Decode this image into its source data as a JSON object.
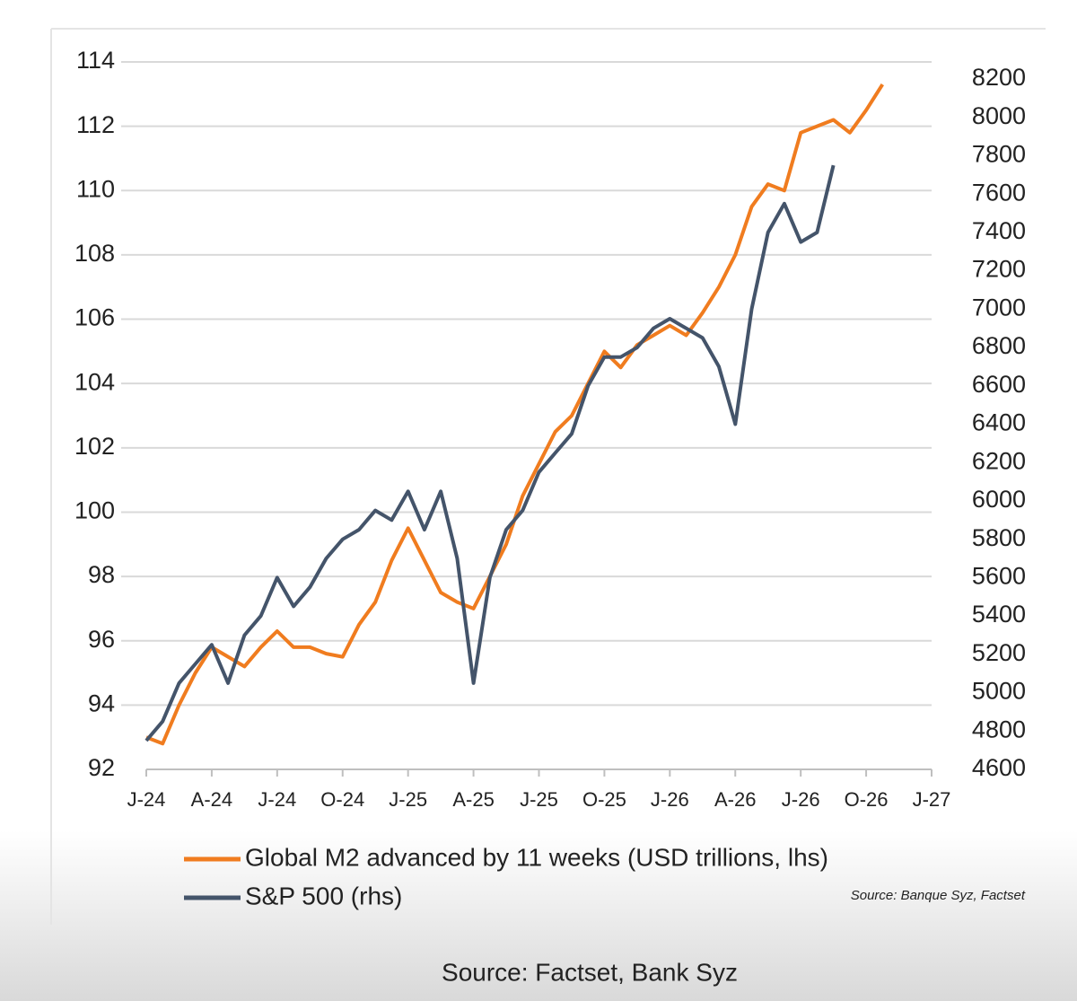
{
  "chart_data": {
    "type": "line",
    "source_note": "Source: Banque Syz, Factset",
    "caption": "Source: Factset, Bank Syz",
    "x": [
      0,
      0.25,
      0.5,
      0.75,
      1,
      1.25,
      1.5,
      1.75,
      2,
      2.25,
      2.5,
      2.75,
      3,
      3.25,
      3.5,
      3.75,
      4,
      4.25,
      4.5,
      4.75,
      5,
      5.25,
      5.5,
      5.75,
      6,
      6.25,
      6.5,
      6.75,
      7,
      7.25,
      7.5,
      7.75,
      8,
      8.25,
      8.5,
      8.75,
      9,
      9.25,
      9.5,
      9.75,
      10,
      10.25,
      10.5,
      10.75,
      11,
      11.25
    ],
    "xlim": [
      0,
      12
    ],
    "xticks": [
      {
        "value": 0,
        "label": "J-24"
      },
      {
        "value": 1,
        "label": "A-24"
      },
      {
        "value": 2,
        "label": "J-24"
      },
      {
        "value": 3,
        "label": "O-24"
      },
      {
        "value": 4,
        "label": "J-25"
      },
      {
        "value": 5,
        "label": "A-25"
      },
      {
        "value": 6,
        "label": "J-25"
      },
      {
        "value": 7,
        "label": "O-25"
      },
      {
        "value": 8,
        "label": "J-26"
      },
      {
        "value": 9,
        "label": "A-26"
      },
      {
        "value": 10,
        "label": "J-26"
      },
      {
        "value": 11,
        "label": "O-26"
      },
      {
        "value": 12,
        "label": "J-27"
      }
    ],
    "ylim": [
      92,
      114
    ],
    "yticks": [
      92,
      94,
      96,
      98,
      100,
      102,
      104,
      106,
      108,
      110,
      112,
      114
    ],
    "y2lim": [
      4600,
      8200
    ],
    "y2ticks": [
      4600,
      4800,
      5000,
      5200,
      5400,
      5600,
      5800,
      6000,
      6200,
      6400,
      6600,
      6800,
      7000,
      7200,
      7400,
      7600,
      7800,
      8000,
      8200
    ],
    "grid": true,
    "series": [
      {
        "name": "Global M2 advanced by 11 weeks (USD trillions, lhs)",
        "color": "#f07c1f",
        "values": [
          93.0,
          92.8,
          94.0,
          95.0,
          95.8,
          95.5,
          95.2,
          95.8,
          96.3,
          95.8,
          95.8,
          95.6,
          95.5,
          96.5,
          97.2,
          98.5,
          99.5,
          98.5,
          97.5,
          97.2,
          97.0,
          98.0,
          99.0,
          100.5,
          101.5,
          102.5,
          103.0,
          104.0,
          105.0,
          104.5,
          105.2,
          105.5,
          105.8,
          105.5,
          106.2,
          107.0,
          108.0,
          109.5,
          110.2,
          110.0,
          111.8,
          112.0,
          112.2,
          111.8,
          112.5,
          113.3
        ]
      },
      {
        "name": "S&P 500 (rhs)",
        "color": "#44546a",
        "axis": "y2",
        "values": [
          4750,
          4850,
          5050,
          5150,
          5250,
          5050,
          5300,
          5400,
          5600,
          5450,
          5550,
          5700,
          5800,
          5850,
          5950,
          5900,
          6050,
          5850,
          6050,
          5700,
          5050,
          5600,
          5850,
          5950,
          6150,
          6250,
          6350,
          6600,
          6750,
          6750,
          6800,
          6900,
          6950,
          6900,
          6850,
          6700,
          6400,
          7000,
          7400,
          7550,
          7350,
          7400,
          7750,
          null,
          null,
          null
        ]
      }
    ]
  }
}
